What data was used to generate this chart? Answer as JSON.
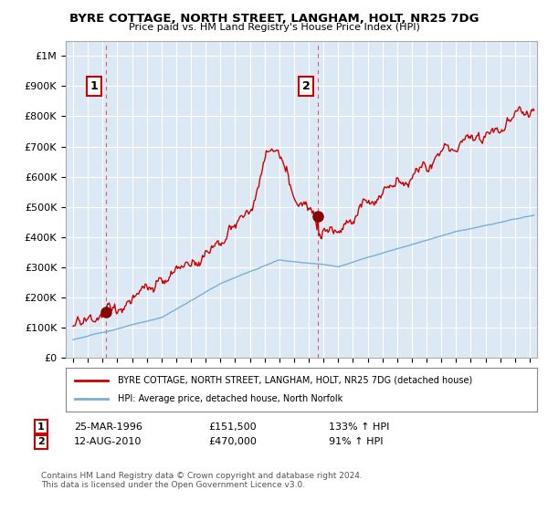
{
  "title": "BYRE COTTAGE, NORTH STREET, LANGHAM, HOLT, NR25 7DG",
  "subtitle": "Price paid vs. HM Land Registry's House Price Index (HPI)",
  "ylabel_ticks": [
    "£0",
    "£100K",
    "£200K",
    "£300K",
    "£400K",
    "£500K",
    "£600K",
    "£700K",
    "£800K",
    "£900K",
    "£1M"
  ],
  "ytick_values": [
    0,
    100000,
    200000,
    300000,
    400000,
    500000,
    600000,
    700000,
    800000,
    900000,
    1000000
  ],
  "ylim": [
    0,
    1050000
  ],
  "xlim_start": 1993.5,
  "xlim_end": 2025.5,
  "sale1_x": 1996.23,
  "sale1_y": 151500,
  "sale1_label": "1",
  "sale2_x": 2010.62,
  "sale2_y": 470000,
  "sale2_label": "2",
  "property_color": "#cc0000",
  "hpi_color": "#7ab0d4",
  "background_color": "#ffffff",
  "plot_bg_color": "#dce9f5",
  "grid_color": "#ffffff",
  "legend_property": "BYRE COTTAGE, NORTH STREET, LANGHAM, HOLT, NR25 7DG (detached house)",
  "legend_hpi": "HPI: Average price, detached house, North Norfolk",
  "annotation1_date": "25-MAR-1996",
  "annotation1_price": "£151,500",
  "annotation1_hpi": "133% ↑ HPI",
  "annotation2_date": "12-AUG-2010",
  "annotation2_price": "£470,000",
  "annotation2_hpi": "91% ↑ HPI",
  "footnote": "Contains HM Land Registry data © Crown copyright and database right 2024.\nThis data is licensed under the Open Government Licence v3.0."
}
